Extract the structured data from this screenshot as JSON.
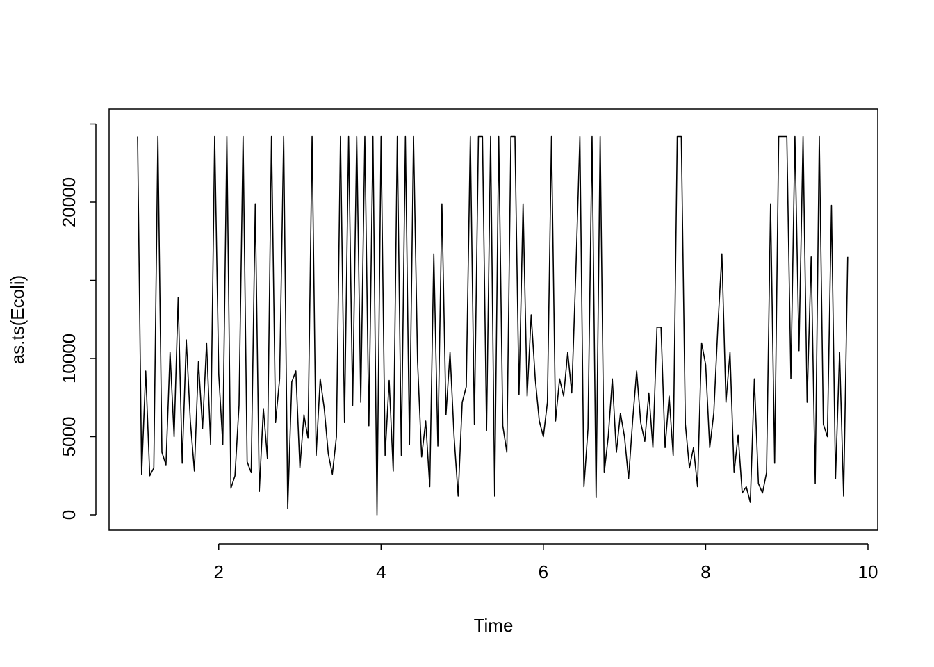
{
  "chart_data": {
    "type": "line",
    "x_label": "Time",
    "y_label": "as.ts(Ecoli)",
    "color": "#000000",
    "x": [
      1,
      1.05,
      1.1,
      1.15,
      1.2,
      1.25,
      1.3,
      1.35,
      1.4,
      1.45,
      1.5,
      1.55,
      1.6,
      1.65,
      1.7,
      1.75,
      1.8,
      1.85,
      1.9,
      1.95,
      2,
      2.05,
      2.1,
      2.15,
      2.2,
      2.25,
      2.3,
      2.35,
      2.4,
      2.45,
      2.5,
      2.55,
      2.6,
      2.65,
      2.7,
      2.75,
      2.8,
      2.85,
      2.9,
      2.95,
      3,
      3.05,
      3.1,
      3.15,
      3.2,
      3.25,
      3.3,
      3.35,
      3.4,
      3.45,
      3.5,
      3.55,
      3.6,
      3.65,
      3.7,
      3.75,
      3.8,
      3.85,
      3.9,
      3.95,
      4,
      4.05,
      4.1,
      4.15,
      4.2,
      4.25,
      4.3,
      4.35,
      4.4,
      4.45,
      4.5,
      4.55,
      4.6,
      4.65,
      4.7,
      4.75,
      4.8,
      4.85,
      4.9,
      4.95,
      5,
      5.05,
      5.1,
      5.15,
      5.2,
      5.25,
      5.3,
      5.35,
      5.4,
      5.45,
      5.5,
      5.55,
      5.6,
      5.65,
      5.7,
      5.75,
      5.8,
      5.85,
      5.9,
      5.95,
      6,
      6.05,
      6.1,
      6.15,
      6.2,
      6.25,
      6.3,
      6.35,
      6.4,
      6.45,
      6.5,
      6.55,
      6.6,
      6.65,
      6.7,
      6.75,
      6.8,
      6.85,
      6.9,
      6.95,
      7,
      7.05,
      7.1,
      7.15,
      7.2,
      7.25,
      7.3,
      7.35,
      7.4,
      7.45,
      7.5,
      7.55,
      7.6,
      7.65,
      7.7,
      7.75,
      7.8,
      7.85,
      7.9,
      7.95,
      8,
      8.05,
      8.1,
      8.15,
      8.2,
      8.25,
      8.3,
      8.35,
      8.4,
      8.45,
      8.5,
      8.55,
      8.6,
      8.65,
      8.7,
      8.75,
      8.8,
      8.85,
      8.9,
      8.95,
      9,
      9.05,
      9.1,
      9.15,
      9.2,
      9.25,
      9.3,
      9.35,
      9.4,
      9.45,
      9.5,
      9.55,
      9.6,
      9.65,
      9.7,
      9.75
    ],
    "values": [
      24200,
      2600,
      9200,
      2500,
      3000,
      24200,
      4000,
      3200,
      10400,
      5000,
      13900,
      3300,
      11200,
      6000,
      2800,
      9800,
      5500,
      11000,
      4500,
      24200,
      9000,
      4500,
      24200,
      1700,
      2500,
      7000,
      24200,
      3400,
      2700,
      19900,
      1500,
      6800,
      3600,
      24200,
      5900,
      8700,
      24200,
      400,
      8500,
      9200,
      3000,
      6400,
      4900,
      24200,
      3800,
      8700,
      6800,
      3900,
      2600,
      5000,
      24200,
      5900,
      24200,
      7000,
      24200,
      7200,
      24200,
      5700,
      24200,
      0,
      24200,
      3800,
      8600,
      2800,
      24200,
      3800,
      24200,
      4500,
      24200,
      9800,
      3700,
      6000,
      1800,
      16700,
      4400,
      19900,
      6400,
      10400,
      5000,
      1200,
      7200,
      8200,
      24200,
      5800,
      24200,
      24200,
      5400,
      24200,
      1200,
      24200,
      5700,
      4000,
      24200,
      24200,
      7700,
      19900,
      7600,
      12800,
      8700,
      6000,
      5000,
      7200,
      24200,
      6000,
      8700,
      7600,
      10400,
      7800,
      15500,
      24200,
      1800,
      5500,
      24200,
      1100,
      24200,
      2700,
      5000,
      8700,
      4000,
      6500,
      5000,
      2300,
      6000,
      9200,
      5900,
      4700,
      7800,
      4300,
      12000,
      12000,
      4300,
      7600,
      3800,
      24200,
      24200,
      5800,
      3000,
      4300,
      1800,
      11000,
      9600,
      4300,
      6500,
      12000,
      16700,
      7200,
      10400,
      2700,
      5100,
      1400,
      1800,
      800,
      8700,
      2000,
      1400,
      2700,
      19900,
      3300,
      24200,
      24200,
      24200,
      8700,
      24200,
      10500,
      24200,
      7200,
      16500,
      2000,
      24200,
      5800,
      5000,
      19800,
      2300,
      10400,
      1200,
      16500
    ],
    "xlim": [
      0.649,
      10.12
    ],
    "ylim": [
      -978,
      25956
    ],
    "xticks": [
      2,
      4,
      6,
      8,
      10
    ],
    "yticks": [
      0,
      5000,
      10000,
      {
        "value": 15000,
        "label": null
      },
      20000,
      {
        "value": 25000,
        "label": null
      }
    ]
  }
}
